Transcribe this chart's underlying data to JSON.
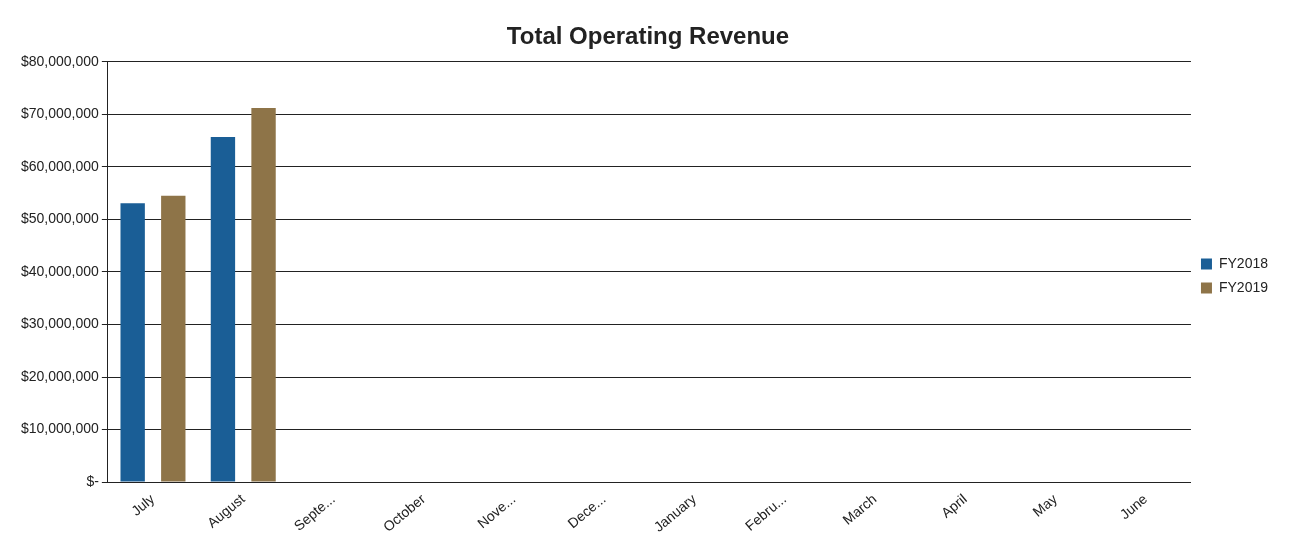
{
  "chart_data": {
    "type": "bar",
    "title": "Total Operating Revenue",
    "categories": [
      "July",
      "August",
      "Septe...",
      "October",
      "Nove...",
      "Dece...",
      "January",
      "Febru...",
      "March",
      "April",
      "May",
      "June"
    ],
    "series": [
      {
        "name": "FY2018",
        "color": "#1a5e96",
        "values": [
          53100000,
          65700000,
          null,
          null,
          null,
          null,
          null,
          null,
          null,
          null,
          null,
          null
        ]
      },
      {
        "name": "FY2019",
        "color": "#8e7448",
        "values": [
          54500000,
          71200000,
          null,
          null,
          null,
          null,
          null,
          null,
          null,
          null,
          null,
          null
        ]
      }
    ],
    "ylim": [
      0,
      80000000
    ],
    "yticks": [
      {
        "value": 0,
        "label": "$-"
      },
      {
        "value": 10000000,
        "label": "$10,000,000"
      },
      {
        "value": 20000000,
        "label": "$20,000,000"
      },
      {
        "value": 30000000,
        "label": "$30,000,000"
      },
      {
        "value": 40000000,
        "label": "$40,000,000"
      },
      {
        "value": 50000000,
        "label": "$50,000,000"
      },
      {
        "value": 60000000,
        "label": "$60,000,000"
      },
      {
        "value": 70000000,
        "label": "$70,000,000"
      },
      {
        "value": 80000000,
        "label": "$80,000,000"
      }
    ],
    "grid": "y",
    "legend": "right"
  }
}
